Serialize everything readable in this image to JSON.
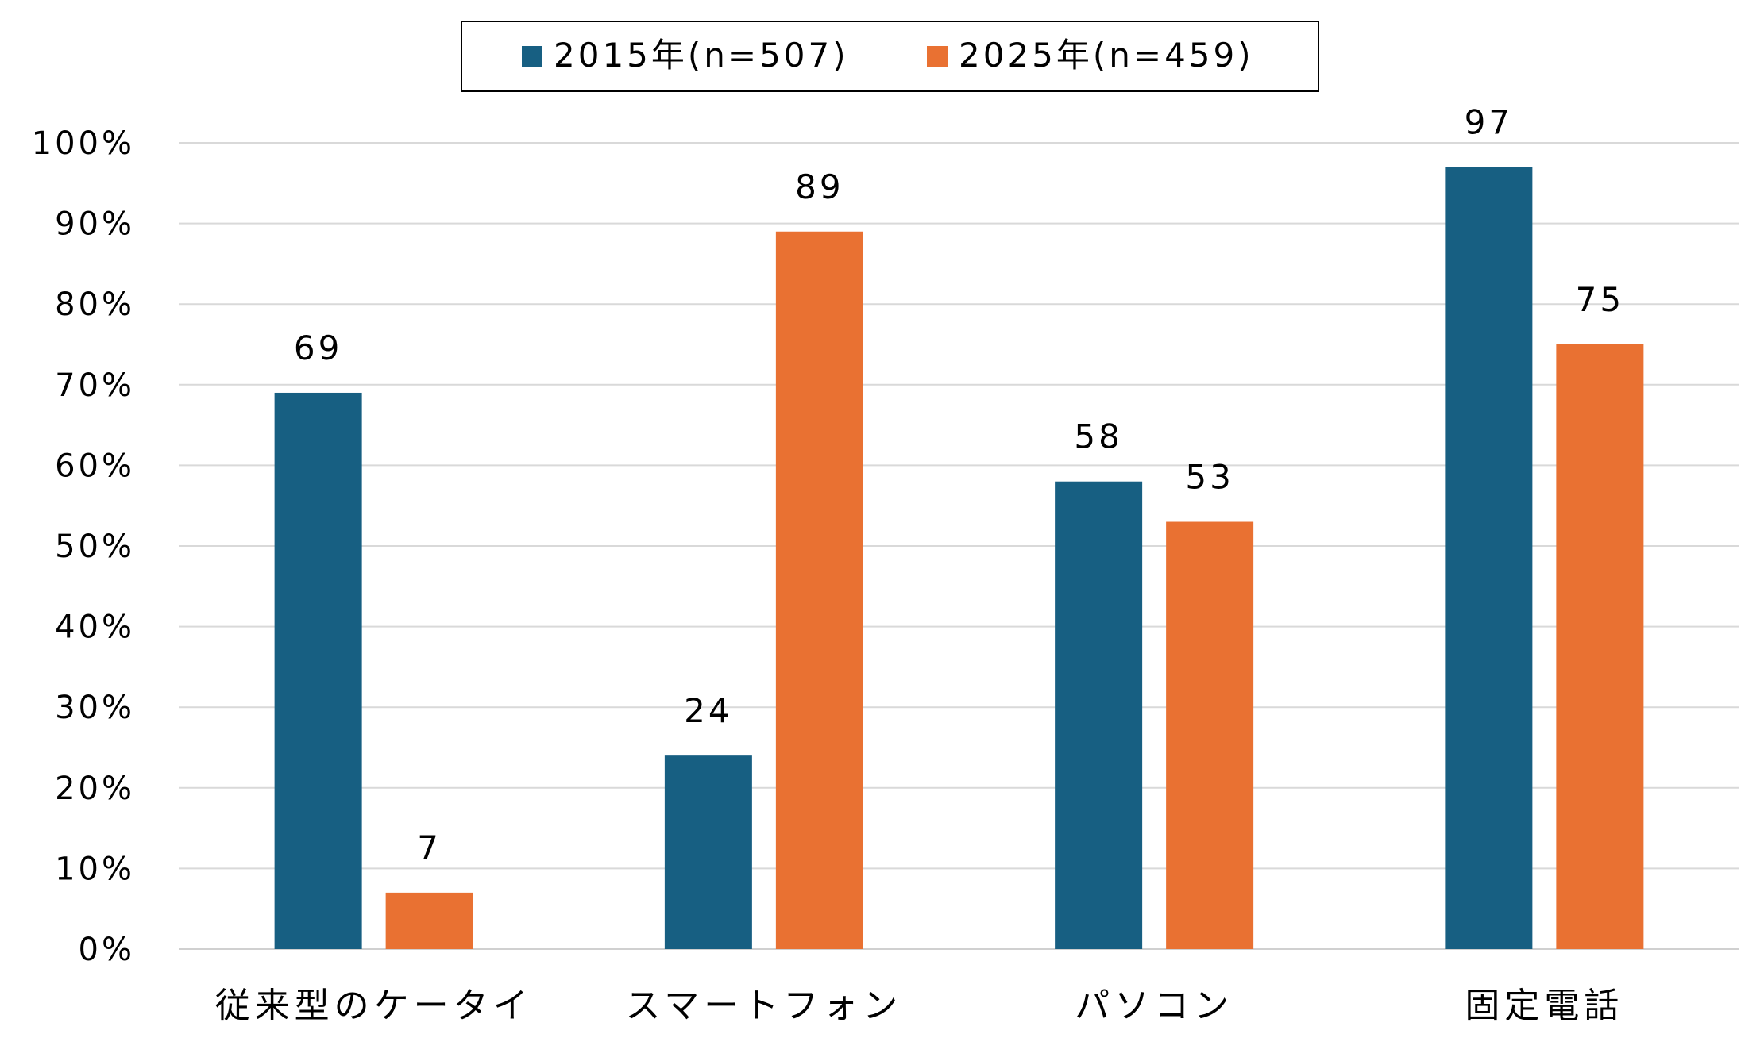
{
  "chart_data": {
    "type": "bar",
    "categories": [
      "従来型のケータイ",
      "スマートフォン",
      "パソコン",
      "固定電話"
    ],
    "series": [
      {
        "name": "2015年(n=507)",
        "color": "#175F82",
        "values": [
          69,
          24,
          58,
          97
        ]
      },
      {
        "name": "2025年(n=459)",
        "color": "#E97132",
        "values": [
          7,
          89,
          53,
          75
        ]
      }
    ],
    "data_labels": [
      [
        "69",
        "24",
        "58",
        "97"
      ],
      [
        "7",
        "89",
        "53",
        "75"
      ]
    ],
    "ylim": [
      0,
      100
    ],
    "yticks": [
      0,
      10,
      20,
      30,
      40,
      50,
      60,
      70,
      80,
      90,
      100
    ],
    "ytick_labels": [
      "0%",
      "10%",
      "20%",
      "30%",
      "40%",
      "50%",
      "60%",
      "70%",
      "80%",
      "90%",
      "100%"
    ],
    "grid": true,
    "legend_position": "top"
  }
}
